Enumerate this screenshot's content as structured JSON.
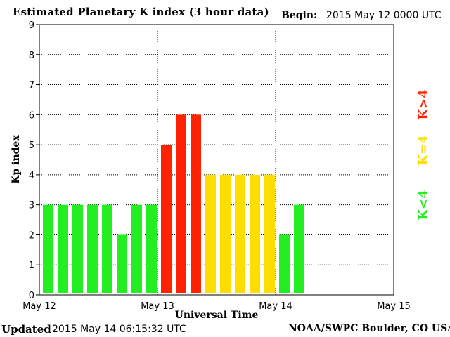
{
  "header": {
    "title": "Estimated Planetary K index (3 hour data)",
    "begin_label": "Begin:",
    "begin_value": "2015 May 12 0000 UTC"
  },
  "footer": {
    "updated_label": "Updated",
    "updated_value": "2015 May 14 06:15:32 UTC",
    "credit": "NOAA/SWPC Boulder, CO USA"
  },
  "legend": {
    "low": "K<4",
    "mid": "K=4",
    "high": "K>4"
  },
  "colors": {
    "low": "#22ee22",
    "mid": "#ffdd00",
    "high": "#ff2200"
  },
  "chart_data": {
    "type": "bar",
    "title": "Estimated Planetary K index (3 hour data)",
    "xlabel": "Universal Time",
    "ylabel": "Kp index",
    "ylim": [
      0,
      9
    ],
    "yticks": [
      "0",
      "1",
      "2",
      "3",
      "4",
      "5",
      "6",
      "7",
      "8",
      "9"
    ],
    "xticks": [
      "May 12",
      "May 13",
      "May 14",
      "May 15"
    ],
    "grid": true,
    "categories": [
      "May 12 00",
      "May 12 03",
      "May 12 06",
      "May 12 09",
      "May 12 12",
      "May 12 15",
      "May 12 18",
      "May 12 21",
      "May 13 00",
      "May 13 03",
      "May 13 06",
      "May 13 09",
      "May 13 12",
      "May 13 15",
      "May 13 18",
      "May 13 21",
      "May 14 00",
      "May 14 03"
    ],
    "values": [
      3,
      3,
      3,
      3,
      3,
      2,
      3,
      3,
      5,
      6,
      6,
      4,
      4,
      4,
      4,
      4,
      2,
      3
    ]
  }
}
